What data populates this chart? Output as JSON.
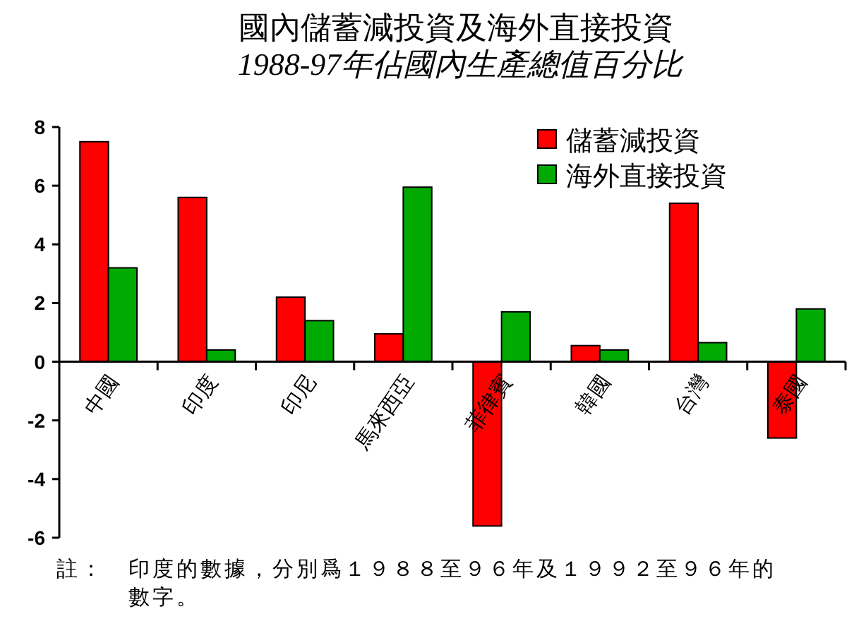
{
  "chart_data": {
    "type": "bar",
    "title": "國內儲蓄減投資及海外直接投資",
    "subtitle": "1988-97年佔國內生產總值百分比",
    "categories": [
      "中國",
      "印度",
      "印尼",
      "馬來西亞",
      "菲律賓",
      "韓國",
      "台灣",
      "泰國"
    ],
    "series": [
      {
        "name": "儲蓄減投資",
        "color": "#ff0000",
        "values": [
          7.5,
          5.6,
          2.2,
          0.95,
          -5.6,
          0.55,
          5.4,
          -2.6
        ]
      },
      {
        "name": "海外直接投資",
        "color": "#00aa00",
        "values": [
          3.2,
          0.4,
          1.4,
          5.95,
          1.7,
          0.4,
          0.65,
          1.8
        ]
      }
    ],
    "ylim": [
      -6,
      8
    ],
    "yticks": [
      -6,
      -4,
      -2,
      0,
      2,
      4,
      6,
      8
    ],
    "legend": "top right",
    "annotations": [
      "註：　印度的數據，分別爲１９８８至９６年及１９９２至９６年的數字。"
    ]
  }
}
